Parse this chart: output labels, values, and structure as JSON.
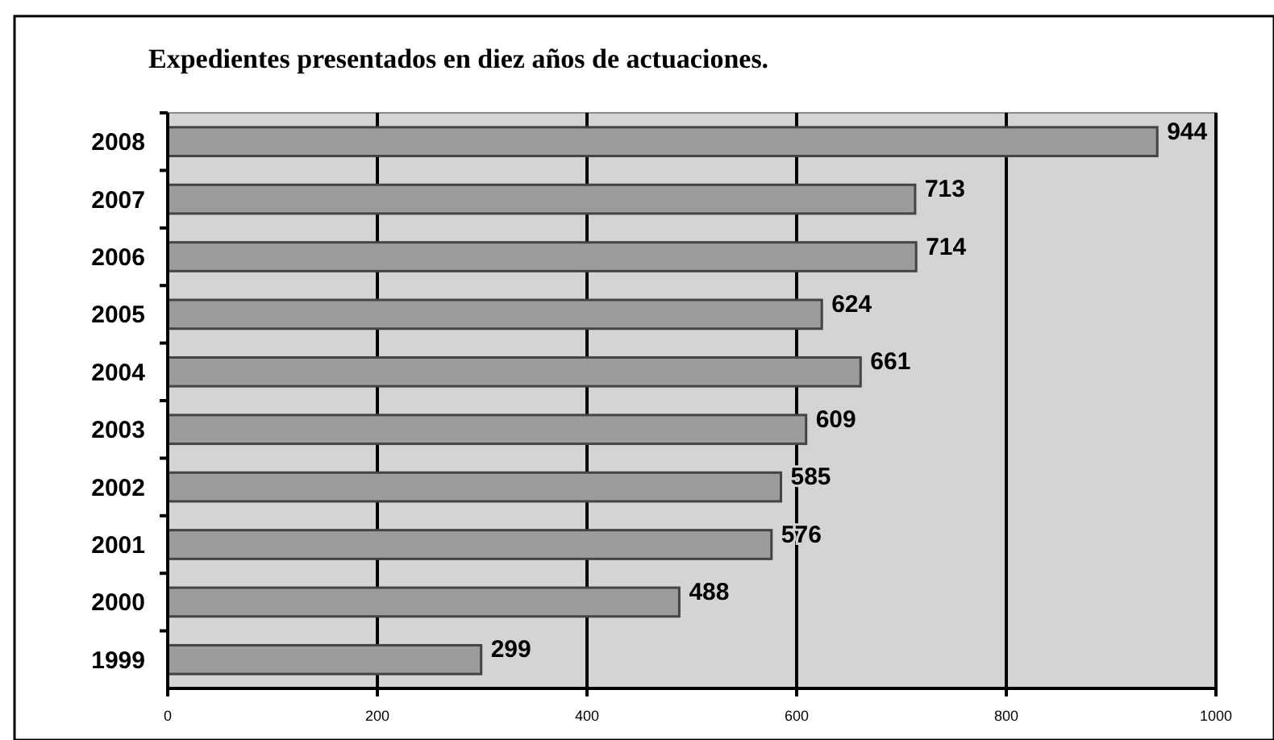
{
  "chart_data": {
    "type": "bar",
    "orientation": "horizontal",
    "title": "Expedientes presentados en diez años de actuaciones.",
    "categories": [
      "2008",
      "2007",
      "2006",
      "2005",
      "2004",
      "2003",
      "2002",
      "2001",
      "2000",
      "1999"
    ],
    "values": [
      944,
      713,
      714,
      624,
      661,
      609,
      585,
      576,
      488,
      299
    ],
    "color": "#9c9c9c",
    "data_labels": true,
    "grid": "x",
    "xlim": [
      0,
      1000
    ],
    "xticks": [
      0,
      200,
      400,
      600,
      800,
      1000
    ]
  }
}
